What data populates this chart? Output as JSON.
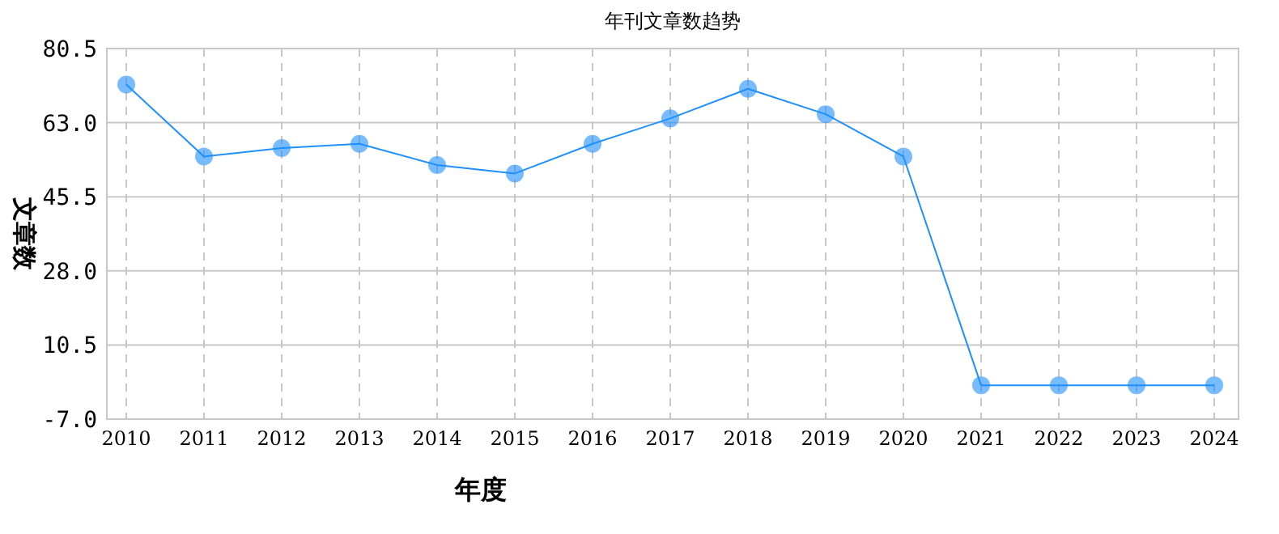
{
  "chart_data": {
    "type": "line",
    "title": "年刊文章数趋势",
    "xlabel": "年度",
    "ylabel": "文章数",
    "categories": [
      "2010",
      "2011",
      "2012",
      "2013",
      "2014",
      "2015",
      "2016",
      "2017",
      "2018",
      "2019",
      "2020",
      "2021",
      "2022",
      "2023",
      "2024"
    ],
    "values": [
      72,
      55,
      57,
      58,
      53,
      51,
      58,
      64,
      71,
      65,
      55,
      1,
      1,
      1,
      1
    ],
    "color": "#1e90ff",
    "marker": "circle",
    "grid": true,
    "line_style": "solid",
    "ylim": [
      -7,
      80.5
    ],
    "yticks": [
      {
        "value": -7,
        "label": "-7.0"
      },
      {
        "value": 10.5,
        "label": "10.5"
      },
      {
        "value": 28,
        "label": "28.0"
      },
      {
        "value": 45.5,
        "label": "45.5"
      },
      {
        "value": 63,
        "label": "63.0"
      },
      {
        "value": 80.5,
        "label": "80.5"
      }
    ]
  }
}
